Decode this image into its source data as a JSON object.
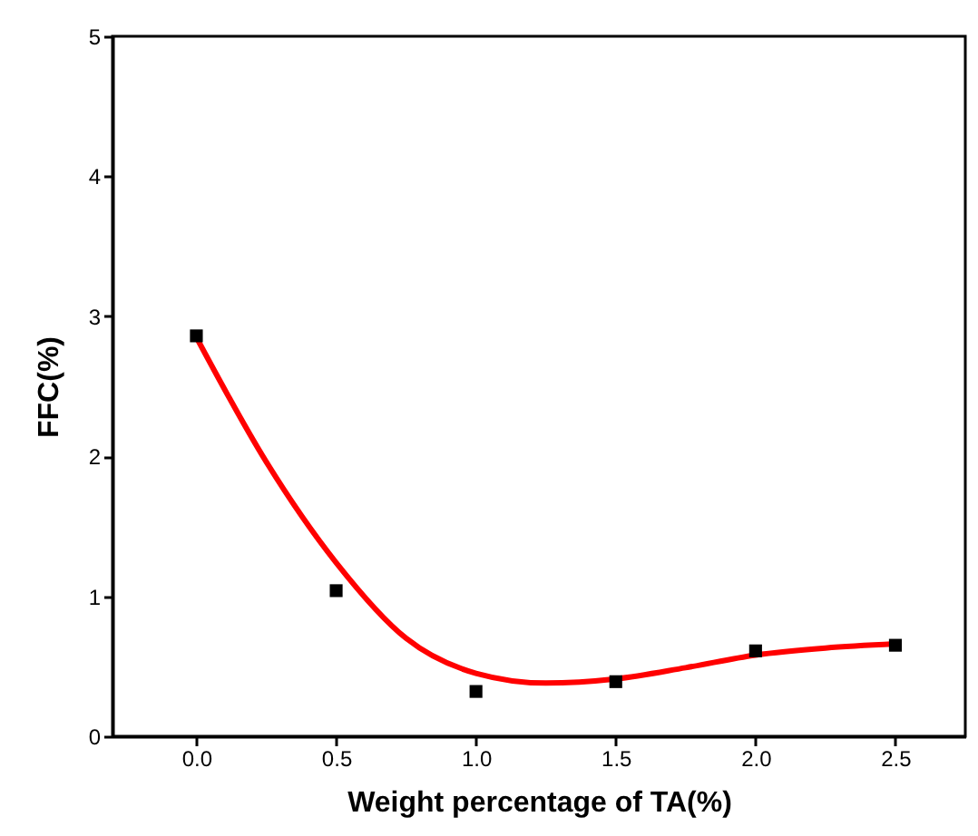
{
  "chart_data": {
    "type": "scatter",
    "xlabel": "Weight percentage of TA(%)",
    "ylabel": "FFC(%)",
    "xlim": [
      -0.3,
      2.75
    ],
    "xticks": [
      {
        "value": 0,
        "label": "0.0"
      },
      {
        "value": 0.5,
        "label": "0.5"
      },
      {
        "value": 1,
        "label": "1.0"
      },
      {
        "value": 1.5,
        "label": "1.5"
      },
      {
        "value": 2,
        "label": "2.0"
      },
      {
        "value": 2.5,
        "label": "2.5"
      }
    ],
    "ylim": [
      0,
      5
    ],
    "yticks": [
      0,
      1,
      2,
      3,
      4,
      5
    ],
    "grid": false,
    "series": [
      {
        "type": "line",
        "color": "#ff0000",
        "marker": "none",
        "line_style": "solid",
        "x": [
          0,
          0.25,
          0.5,
          0.75,
          1,
          1.25,
          1.5,
          1.75,
          2,
          2.25,
          2.5
        ],
        "values": [
          2.85,
          1.96,
          1.24,
          0.7,
          0.45,
          0.38,
          0.41,
          0.49,
          0.58,
          0.63,
          0.66
        ]
      },
      {
        "color": "#000000",
        "marker": "square",
        "x": [
          0,
          0.5,
          1,
          1.5,
          2,
          2.5
        ],
        "values": [
          2.86,
          1.04,
          0.32,
          0.39,
          0.61,
          0.65
        ]
      }
    ]
  }
}
